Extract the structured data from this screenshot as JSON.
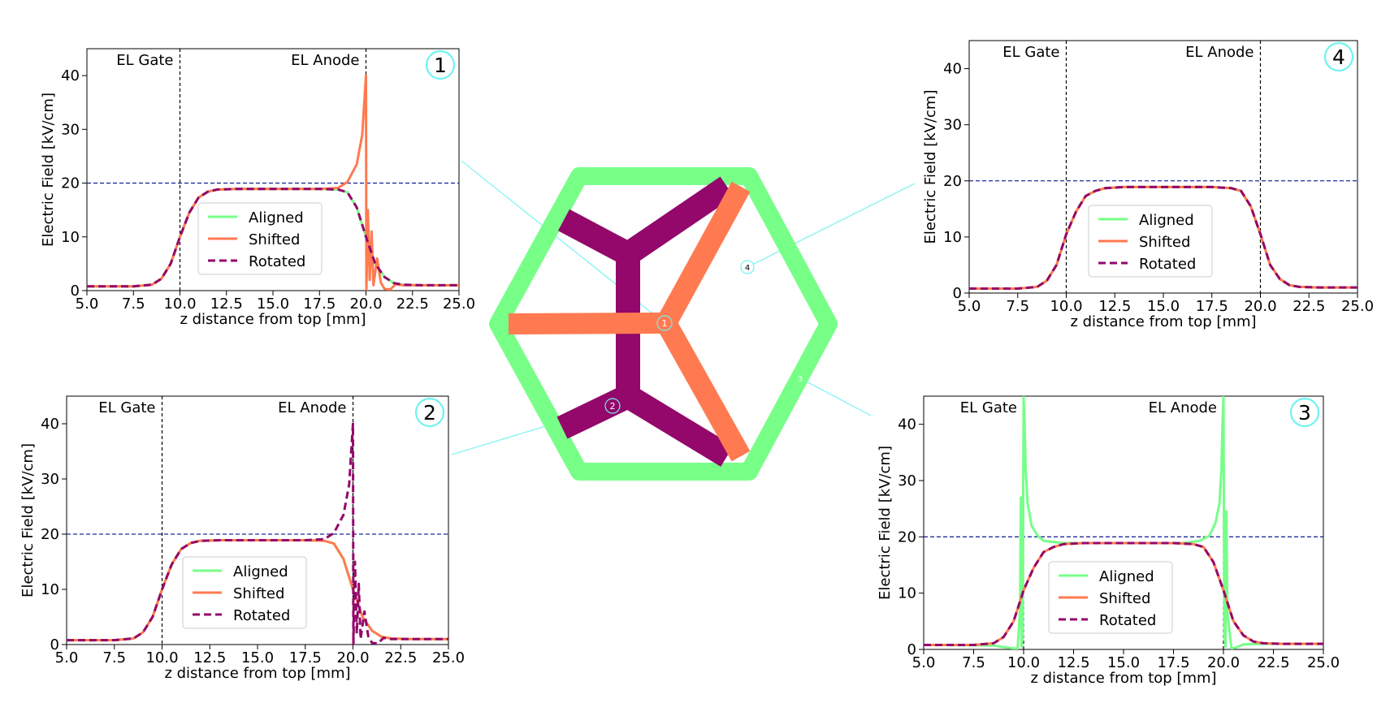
{
  "colors": {
    "aligned": "#77ff88",
    "shifted": "#ff7a50",
    "rotated": "#93086a",
    "threshold": "#1f2a9a",
    "marker": "#6ff3f0"
  },
  "diagram": {
    "frame_color": "#77ff88",
    "marker_labels": [
      "1",
      "2",
      "3",
      "4"
    ]
  },
  "chart_data": [
    {
      "id": "1",
      "type": "line",
      "xlabel": "z distance from top [mm]",
      "ylabel": "Electric Field [kV/cm]",
      "xlim": [
        5,
        25
      ],
      "ylim": [
        0,
        45
      ],
      "xticks": [
        5,
        7.5,
        10,
        12.5,
        15,
        17.5,
        20,
        22.5,
        25
      ],
      "yticks": [
        0,
        10,
        20,
        30,
        40
      ],
      "grid": false,
      "legend_position": "lower-center",
      "vlines": [
        {
          "x": 10,
          "label": "EL Gate"
        },
        {
          "x": 20,
          "label": "EL Anode"
        }
      ],
      "hline": 20,
      "series": [
        {
          "name": "Aligned",
          "key": "aligned",
          "style": "solid",
          "x": [
            5,
            7.5,
            8.5,
            9,
            9.5,
            10,
            10.5,
            11,
            11.5,
            12,
            13,
            15,
            17.5,
            18.5,
            19,
            19.5,
            20,
            20.5,
            21,
            21.5,
            22,
            23,
            25
          ],
          "y": [
            0.8,
            0.8,
            1.1,
            2.2,
            5,
            10,
            14.5,
            17.3,
            18.4,
            18.8,
            18.9,
            18.9,
            18.9,
            18.8,
            18.3,
            15.5,
            10,
            5,
            2.5,
            1.4,
            1.1,
            1.0,
            1.0
          ]
        },
        {
          "name": "Shifted",
          "key": "shifted",
          "style": "solid",
          "x": [
            5,
            7.5,
            8.5,
            9,
            9.5,
            10,
            10.5,
            11,
            11.5,
            12,
            13,
            15,
            17.5,
            18.5,
            19,
            19.5,
            19.8,
            20.0,
            20.02,
            20.1,
            20.2,
            20.3,
            20.4,
            20.6,
            20.8,
            21,
            21.3,
            21.6,
            22,
            23,
            25
          ],
          "y": [
            0.8,
            0.8,
            1.1,
            2.2,
            5,
            10,
            14.5,
            17.3,
            18.4,
            18.8,
            18.9,
            18.9,
            18.9,
            19.1,
            20.2,
            23.5,
            29,
            40,
            0,
            15,
            2,
            11,
            1,
            6,
            1.5,
            0.3,
            0.2,
            1.2,
            1.0,
            1.0,
            1.0
          ]
        },
        {
          "name": "Rotated",
          "key": "rotated",
          "style": "dashed",
          "x": [
            5,
            7.5,
            8.5,
            9,
            9.5,
            10,
            10.5,
            11,
            11.5,
            12,
            13,
            15,
            17.5,
            18.5,
            19,
            19.5,
            20,
            20.5,
            21,
            21.5,
            22,
            23,
            25
          ],
          "y": [
            0.8,
            0.8,
            1.1,
            2.2,
            5,
            10,
            14.5,
            17.3,
            18.4,
            18.8,
            18.9,
            18.9,
            18.9,
            18.8,
            18.3,
            15.5,
            10,
            5,
            2.5,
            1.4,
            1.1,
            1.0,
            1.0
          ]
        }
      ]
    },
    {
      "id": "2",
      "type": "line",
      "xlabel": "z distance from top [mm]",
      "ylabel": "Electric Field [kV/cm]",
      "xlim": [
        5,
        25
      ],
      "ylim": [
        0,
        45
      ],
      "xticks": [
        5,
        7.5,
        10,
        12.5,
        15,
        17.5,
        20,
        22.5,
        25
      ],
      "yticks": [
        0,
        10,
        20,
        30,
        40
      ],
      "grid": false,
      "legend_position": "lower-center",
      "vlines": [
        {
          "x": 10,
          "label": "EL Gate"
        },
        {
          "x": 20,
          "label": "EL Anode"
        }
      ],
      "hline": 20,
      "series": [
        {
          "name": "Aligned",
          "key": "aligned",
          "style": "solid",
          "x": [
            5,
            7.5,
            8.5,
            9,
            9.5,
            10,
            10.5,
            11,
            11.5,
            12,
            13,
            15,
            17.5,
            18.5,
            19,
            19.5,
            20,
            20.5,
            21,
            21.5,
            22,
            23,
            25
          ],
          "y": [
            0.8,
            0.8,
            1.1,
            2.2,
            5,
            10,
            14.5,
            17.3,
            18.4,
            18.8,
            18.9,
            18.9,
            18.9,
            18.8,
            18.3,
            15.5,
            10,
            5,
            2.5,
            1.4,
            1.1,
            1.0,
            1.0
          ]
        },
        {
          "name": "Shifted",
          "key": "shifted",
          "style": "solid",
          "x": [
            5,
            7.5,
            8.5,
            9,
            9.5,
            10,
            10.5,
            11,
            11.5,
            12,
            13,
            15,
            17.5,
            18.5,
            19,
            19.5,
            20,
            20.5,
            21,
            21.5,
            22,
            23,
            25
          ],
          "y": [
            0.8,
            0.8,
            1.1,
            2.2,
            5,
            10,
            14.5,
            17.3,
            18.4,
            18.8,
            18.9,
            18.9,
            18.9,
            18.8,
            18.3,
            15.5,
            10,
            5,
            2.5,
            1.4,
            1.1,
            1.0,
            1.0
          ]
        },
        {
          "name": "Rotated",
          "key": "rotated",
          "style": "dashed",
          "x": [
            5,
            7.5,
            8.5,
            9,
            9.5,
            10,
            10.5,
            11,
            11.5,
            12,
            13,
            15,
            17.5,
            18.5,
            19,
            19.5,
            19.8,
            20.0,
            20.02,
            20.1,
            20.2,
            20.3,
            20.4,
            20.6,
            20.8,
            21,
            21.3,
            21.6,
            22,
            23,
            25
          ],
          "y": [
            0.8,
            0.8,
            1.1,
            2.2,
            5,
            10,
            14.5,
            17.3,
            18.4,
            18.8,
            18.9,
            18.9,
            18.9,
            19.1,
            20.2,
            23.5,
            29,
            40,
            0,
            15,
            2,
            11,
            1,
            6,
            1.5,
            0.3,
            0.2,
            1.2,
            1.0,
            1.0,
            1.0
          ]
        }
      ]
    },
    {
      "id": "3",
      "type": "line",
      "xlabel": "z distance from top [mm]",
      "ylabel": "Electric Field [kV/cm]",
      "xlim": [
        5,
        25
      ],
      "ylim": [
        0,
        45
      ],
      "xticks": [
        5,
        7.5,
        10,
        12.5,
        15,
        17.5,
        20,
        22.5,
        25
      ],
      "yticks": [
        0,
        10,
        20,
        30,
        40
      ],
      "grid": false,
      "legend_position": "lower-center",
      "vlines": [
        {
          "x": 10,
          "label": "EL Gate"
        },
        {
          "x": 20,
          "label": "EL Anode"
        }
      ],
      "hline": 20,
      "series": [
        {
          "name": "Aligned",
          "key": "aligned",
          "style": "solid",
          "x": [
            5,
            8.5,
            9,
            9.5,
            9.7,
            9.82,
            9.86,
            9.9,
            9.95,
            10.0,
            10.05,
            10.1,
            10.2,
            10.4,
            10.7,
            11,
            12,
            15,
            18,
            18.8,
            19.3,
            19.6,
            19.8,
            19.9,
            19.95,
            20.0,
            20.05,
            20.1,
            20.15,
            20.2,
            20.4,
            20.6,
            21,
            22,
            25
          ],
          "y": [
            0.8,
            0.7,
            0.4,
            0.2,
            0.1,
            7,
            27,
            0.5,
            2,
            45,
            40,
            32,
            26,
            22,
            20.2,
            19.3,
            18.9,
            18.9,
            18.9,
            19.3,
            20.2,
            22.5,
            26,
            32,
            40,
            45,
            2,
            0.5,
            24.5,
            6.5,
            0.2,
            0.3,
            0.9,
            1.0,
            1.0
          ]
        },
        {
          "name": "Shifted",
          "key": "shifted",
          "style": "solid",
          "x": [
            5,
            7.5,
            8.5,
            9,
            9.5,
            10,
            10.5,
            11,
            11.5,
            12,
            13,
            15,
            17.5,
            18.5,
            19,
            19.5,
            20,
            20.5,
            21,
            21.5,
            22,
            23,
            25
          ],
          "y": [
            0.8,
            0.8,
            1.1,
            2.2,
            5,
            10.5,
            14.5,
            17.3,
            18.2,
            18.7,
            18.9,
            18.9,
            18.9,
            18.7,
            18.2,
            15.5,
            10.5,
            5,
            2.5,
            1.4,
            1.1,
            1.0,
            1.0
          ]
        },
        {
          "name": "Rotated",
          "key": "rotated",
          "style": "dashed",
          "x": [
            5,
            7.5,
            8.5,
            9,
            9.5,
            10,
            10.5,
            11,
            11.5,
            12,
            13,
            15,
            17.5,
            18.5,
            19,
            19.5,
            20,
            20.5,
            21,
            21.5,
            22,
            23,
            25
          ],
          "y": [
            0.8,
            0.8,
            1.1,
            2.2,
            5,
            10.5,
            14.5,
            17.3,
            18.2,
            18.7,
            18.9,
            18.9,
            18.9,
            18.7,
            18.2,
            15.5,
            10.5,
            5,
            2.5,
            1.4,
            1.1,
            1.0,
            1.0
          ]
        }
      ]
    },
    {
      "id": "4",
      "type": "line",
      "xlabel": "z distance from top [mm]",
      "ylabel": "Electric Field [kV/cm]",
      "xlim": [
        5,
        25
      ],
      "ylim": [
        0,
        45
      ],
      "xticks": [
        5,
        7.5,
        10,
        12.5,
        15,
        17.5,
        20,
        22.5,
        25
      ],
      "yticks": [
        0,
        10,
        20,
        30,
        40
      ],
      "grid": false,
      "legend_position": "lower-center",
      "vlines": [
        {
          "x": 10,
          "label": "EL Gate"
        },
        {
          "x": 20,
          "label": "EL Anode"
        }
      ],
      "hline": 20,
      "series": [
        {
          "name": "Aligned",
          "key": "aligned",
          "style": "solid",
          "x": [
            5,
            7.5,
            8.5,
            9,
            9.5,
            10,
            10.5,
            11,
            11.5,
            12,
            13,
            15,
            17.5,
            18.5,
            19,
            19.5,
            20,
            20.5,
            21,
            21.5,
            22,
            23,
            25
          ],
          "y": [
            0.8,
            0.8,
            1.1,
            2.2,
            5,
            10.5,
            14.5,
            17.3,
            18.2,
            18.7,
            18.9,
            18.9,
            18.9,
            18.7,
            18.2,
            15.5,
            10.5,
            5,
            2.5,
            1.4,
            1.1,
            1.0,
            1.0
          ]
        },
        {
          "name": "Shifted",
          "key": "shifted",
          "style": "solid",
          "x": [
            5,
            7.5,
            8.5,
            9,
            9.5,
            10,
            10.5,
            11,
            11.5,
            12,
            13,
            15,
            17.5,
            18.5,
            19,
            19.5,
            20,
            20.5,
            21,
            21.5,
            22,
            23,
            25
          ],
          "y": [
            0.8,
            0.8,
            1.1,
            2.2,
            5,
            10.5,
            14.5,
            17.3,
            18.2,
            18.7,
            18.9,
            18.9,
            18.9,
            18.7,
            18.2,
            15.5,
            10.5,
            5,
            2.5,
            1.4,
            1.1,
            1.0,
            1.0
          ]
        },
        {
          "name": "Rotated",
          "key": "rotated",
          "style": "dashed",
          "x": [
            5,
            7.5,
            8.5,
            9,
            9.5,
            10,
            10.5,
            11,
            11.5,
            12,
            13,
            15,
            17.5,
            18.5,
            19,
            19.5,
            20,
            20.5,
            21,
            21.5,
            22,
            23,
            25
          ],
          "y": [
            0.8,
            0.8,
            1.1,
            2.2,
            5,
            10.5,
            14.5,
            17.3,
            18.2,
            18.7,
            18.9,
            18.9,
            18.9,
            18.7,
            18.2,
            15.5,
            10.5,
            5,
            2.5,
            1.4,
            1.1,
            1.0,
            1.0
          ]
        }
      ]
    }
  ]
}
